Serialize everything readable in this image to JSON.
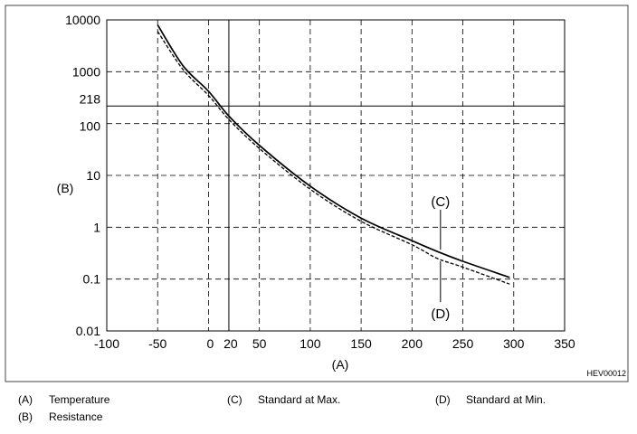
{
  "figure_code": "HEV00012",
  "legend": [
    {
      "key": "(A)",
      "label": "Temperature"
    },
    {
      "key": "(B)",
      "label": "Resistance"
    },
    {
      "key": "(C)",
      "label": "Standard at Max."
    },
    {
      "key": "(D)",
      "label": "Standard at Min."
    }
  ],
  "chart_data": {
    "type": "line",
    "xlabel": "(A)",
    "ylabel": "(B)",
    "xlim": [
      -100,
      350
    ],
    "ylim": [
      0.01,
      10000
    ],
    "y_scale": "log",
    "grid": true,
    "x_ticks": [
      "-100",
      "-50",
      "0",
      "20",
      "50",
      "100",
      "150",
      "200",
      "250",
      "300",
      "350"
    ],
    "x_tick_values": [
      -100,
      -50,
      0,
      20,
      50,
      100,
      150,
      200,
      250,
      300,
      350
    ],
    "y_ticks": [
      "10000",
      "1000",
      "218",
      "100",
      "10",
      "1",
      "0.1",
      "0.01"
    ],
    "y_tick_values": [
      10000,
      1000,
      218,
      100,
      10,
      1,
      0.1,
      0.01
    ],
    "reference_lines": {
      "x": 20,
      "y": 218
    },
    "series": [
      {
        "name": "(C)",
        "style": "solid",
        "x": [
          -50,
          -25,
          0,
          20,
          50,
          100,
          150,
          200,
          225,
          250,
          296
        ],
        "y": [
          8000,
          1300,
          420,
          140,
          38,
          6.2,
          1.5,
          0.55,
          0.34,
          0.22,
          0.108
        ]
      },
      {
        "name": "(D)",
        "style": "dashed",
        "x": [
          -50,
          -25,
          0,
          20,
          50,
          100,
          150,
          200,
          225,
          250,
          296
        ],
        "y": [
          6000,
          1100,
          350,
          120,
          33,
          5.4,
          1.3,
          0.46,
          0.25,
          0.17,
          0.08
        ]
      }
    ]
  }
}
